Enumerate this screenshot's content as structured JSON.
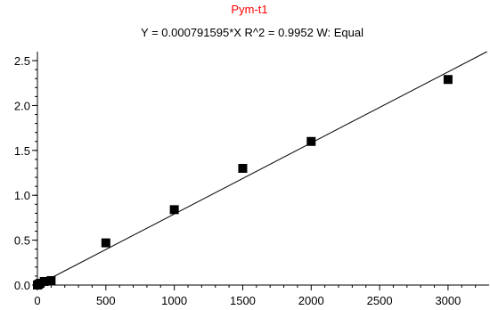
{
  "chart_data": {
    "type": "scatter",
    "title": "Pym-t1",
    "subtitle": "Y = 0.000791595*X    R^2 = 0.9952    W: Equal",
    "title_color": "#ff0000",
    "xlim": [
      0,
      3300
    ],
    "ylim": [
      0,
      2.6
    ],
    "x_ticks": [
      0,
      500,
      1000,
      1500,
      2000,
      2500,
      3000
    ],
    "y_ticks": [
      0.0,
      0.5,
      1.0,
      1.5,
      2.0,
      2.5
    ],
    "x_tick_labels": [
      "0",
      "500",
      "1000",
      "1500",
      "2000",
      "2500",
      "3000"
    ],
    "y_tick_labels": [
      "0.0",
      "0.5",
      "1.0",
      "1.5",
      "2.0",
      "2.5"
    ],
    "grid": false,
    "fit": {
      "slope": 0.000791595,
      "intercept": 0,
      "r_squared": 0.9952,
      "weighting": "Equal"
    },
    "points": [
      {
        "x": 0,
        "y": 0.0
      },
      {
        "x": 10,
        "y": 0.01
      },
      {
        "x": 20,
        "y": 0.02
      },
      {
        "x": 50,
        "y": 0.04
      },
      {
        "x": 100,
        "y": 0.05
      },
      {
        "x": 500,
        "y": 0.47
      },
      {
        "x": 1000,
        "y": 0.84
      },
      {
        "x": 1500,
        "y": 1.3
      },
      {
        "x": 2000,
        "y": 1.6
      },
      {
        "x": 3000,
        "y": 2.29
      }
    ],
    "marker_color": "#000000"
  }
}
